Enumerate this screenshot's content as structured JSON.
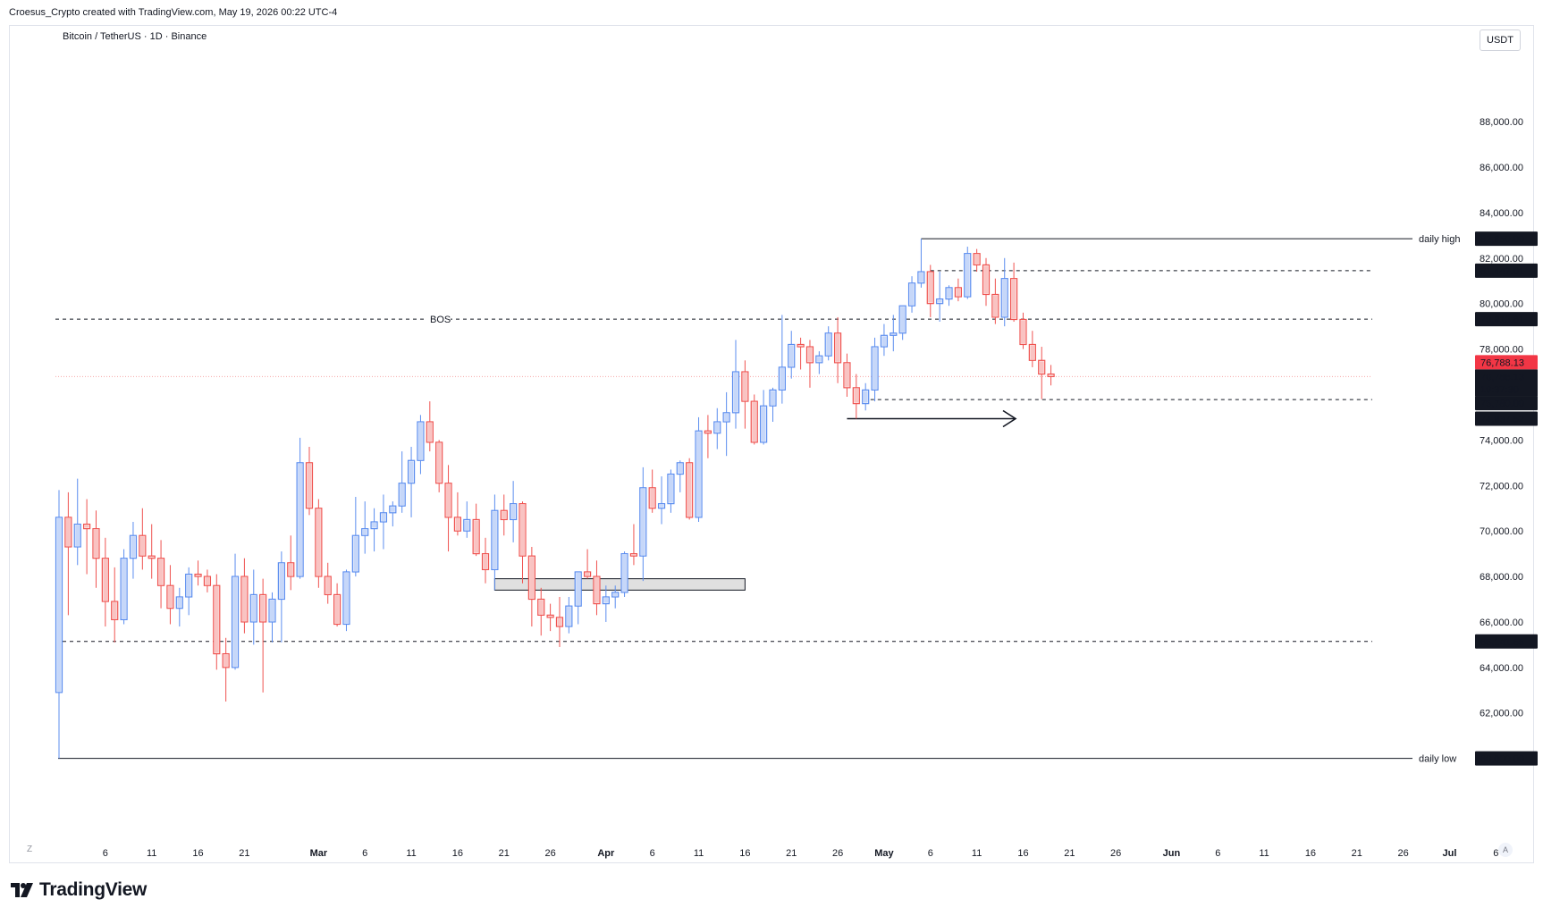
{
  "header": {
    "credit": "Croesus_Crypto created with TradingView.com, May 19, 2026 00:22 UTC-4"
  },
  "symbol": {
    "title": "Bitcoin / TetherUS · 1D · Binance"
  },
  "currency_button": "USDT",
  "footer": {
    "brand": "TradingView",
    "z_button": "Z",
    "auto_button": "A"
  },
  "colors": {
    "up": "#5b8def",
    "down": "#ef5350",
    "line": "#131722",
    "price_badge": "#f23645",
    "price_line": "#f7a8a8"
  },
  "chart_data": {
    "type": "candlestick",
    "title": "Bitcoin / TetherUS · 1D · Binance",
    "ylim": [
      58100,
      90400
    ],
    "y_ticks": [
      {
        "value": 62000,
        "label": "62,000.00"
      },
      {
        "value": 64000,
        "label": "64,000.00"
      },
      {
        "value": 66000,
        "label": "66,000.00"
      },
      {
        "value": 68000,
        "label": "68,000.00"
      },
      {
        "value": 70000,
        "label": "70,000.00"
      },
      {
        "value": 72000,
        "label": "72,000.00"
      },
      {
        "value": 74000,
        "label": "74,000.00"
      },
      {
        "value": 78000,
        "label": "78,000.00"
      },
      {
        "value": 80000,
        "label": "80,000.00"
      },
      {
        "value": 82000,
        "label": "82,000.00"
      },
      {
        "value": 84000,
        "label": "84,000.00"
      },
      {
        "value": 86000,
        "label": "86,000.00"
      },
      {
        "value": 88000,
        "label": "88,000.00"
      }
    ],
    "x_ticks": [
      {
        "label": "6",
        "day": 5
      },
      {
        "label": "11",
        "day": 10
      },
      {
        "label": "16",
        "day": 15
      },
      {
        "label": "21",
        "day": 20
      },
      {
        "label": "Mar",
        "day": 28,
        "bold": true
      },
      {
        "label": "6",
        "day": 33
      },
      {
        "label": "11",
        "day": 38
      },
      {
        "label": "16",
        "day": 43
      },
      {
        "label": "21",
        "day": 48
      },
      {
        "label": "26",
        "day": 53
      },
      {
        "label": "Apr",
        "day": 59,
        "bold": true
      },
      {
        "label": "6",
        "day": 64
      },
      {
        "label": "11",
        "day": 69
      },
      {
        "label": "16",
        "day": 74
      },
      {
        "label": "21",
        "day": 79
      },
      {
        "label": "26",
        "day": 84
      },
      {
        "label": "May",
        "day": 89,
        "bold": true
      },
      {
        "label": "6",
        "day": 94
      },
      {
        "label": "11",
        "day": 99
      },
      {
        "label": "16",
        "day": 104
      },
      {
        "label": "21",
        "day": 109
      },
      {
        "label": "26",
        "day": 114
      },
      {
        "label": "Jun",
        "day": 120,
        "bold": true
      },
      {
        "label": "6",
        "day": 125
      },
      {
        "label": "11",
        "day": 130
      },
      {
        "label": "16",
        "day": 135
      },
      {
        "label": "21",
        "day": 140
      },
      {
        "label": "26",
        "day": 145
      },
      {
        "label": "Jul",
        "day": 150,
        "bold": true
      },
      {
        "label": "6",
        "day": 155
      }
    ],
    "candles": [
      {
        "o": 62900,
        "h": 71800,
        "l": 60000,
        "c": 70600
      },
      {
        "o": 70600,
        "h": 71700,
        "l": 66300,
        "c": 69300
      },
      {
        "o": 69300,
        "h": 72300,
        "l": 68500,
        "c": 70300
      },
      {
        "o": 70300,
        "h": 71400,
        "l": 68100,
        "c": 70100
      },
      {
        "o": 70100,
        "h": 70900,
        "l": 67500,
        "c": 68800
      },
      {
        "o": 68800,
        "h": 69700,
        "l": 65800,
        "c": 66900
      },
      {
        "o": 66900,
        "h": 68400,
        "l": 65100,
        "c": 66100
      },
      {
        "o": 66100,
        "h": 69200,
        "l": 65900,
        "c": 68800
      },
      {
        "o": 68800,
        "h": 70400,
        "l": 67900,
        "c": 69800
      },
      {
        "o": 69800,
        "h": 71000,
        "l": 68300,
        "c": 68900
      },
      {
        "o": 68900,
        "h": 70300,
        "l": 67900,
        "c": 68800
      },
      {
        "o": 68800,
        "h": 69600,
        "l": 66600,
        "c": 67600
      },
      {
        "o": 67600,
        "h": 68500,
        "l": 65900,
        "c": 66600
      },
      {
        "o": 66600,
        "h": 67500,
        "l": 65800,
        "c": 67100
      },
      {
        "o": 67100,
        "h": 68400,
        "l": 66300,
        "c": 68100
      },
      {
        "o": 68100,
        "h": 68700,
        "l": 67600,
        "c": 68000
      },
      {
        "o": 68000,
        "h": 68300,
        "l": 67300,
        "c": 67600
      },
      {
        "o": 67600,
        "h": 68100,
        "l": 63900,
        "c": 64600
      },
      {
        "o": 64600,
        "h": 65300,
        "l": 62500,
        "c": 64000
      },
      {
        "o": 64000,
        "h": 69000,
        "l": 63900,
        "c": 68000
      },
      {
        "o": 68000,
        "h": 68800,
        "l": 65500,
        "c": 66000
      },
      {
        "o": 66000,
        "h": 68300,
        "l": 65000,
        "c": 67200
      },
      {
        "o": 67200,
        "h": 67900,
        "l": 62900,
        "c": 66000
      },
      {
        "o": 66000,
        "h": 67300,
        "l": 65100,
        "c": 67000
      },
      {
        "o": 67000,
        "h": 69100,
        "l": 65100,
        "c": 68600
      },
      {
        "o": 68600,
        "h": 69800,
        "l": 67400,
        "c": 68000
      },
      {
        "o": 68000,
        "h": 74100,
        "l": 67900,
        "c": 73000
      },
      {
        "o": 73000,
        "h": 73700,
        "l": 70700,
        "c": 71000
      },
      {
        "o": 71000,
        "h": 71400,
        "l": 67500,
        "c": 68000
      },
      {
        "o": 68000,
        "h": 68600,
        "l": 66800,
        "c": 67200
      },
      {
        "o": 67200,
        "h": 67700,
        "l": 65800,
        "c": 65900
      },
      {
        "o": 65900,
        "h": 68300,
        "l": 65600,
        "c": 68200
      },
      {
        "o": 68200,
        "h": 71500,
        "l": 68000,
        "c": 69800
      },
      {
        "o": 69800,
        "h": 71300,
        "l": 69000,
        "c": 70100
      },
      {
        "o": 70100,
        "h": 71000,
        "l": 69100,
        "c": 70400
      },
      {
        "o": 70400,
        "h": 71600,
        "l": 69200,
        "c": 70800
      },
      {
        "o": 70800,
        "h": 71300,
        "l": 70200,
        "c": 71100
      },
      {
        "o": 71100,
        "h": 73500,
        "l": 70800,
        "c": 72100
      },
      {
        "o": 72100,
        "h": 73700,
        "l": 70600,
        "c": 73100
      },
      {
        "o": 73100,
        "h": 75100,
        "l": 72500,
        "c": 74800
      },
      {
        "o": 74800,
        "h": 75700,
        "l": 73500,
        "c": 73900
      },
      {
        "o": 73900,
        "h": 74000,
        "l": 71700,
        "c": 72100
      },
      {
        "o": 72100,
        "h": 72900,
        "l": 69100,
        "c": 70600
      },
      {
        "o": 70600,
        "h": 71700,
        "l": 69800,
        "c": 70000
      },
      {
        "o": 70000,
        "h": 71300,
        "l": 69700,
        "c": 70500
      },
      {
        "o": 70500,
        "h": 71200,
        "l": 68900,
        "c": 69000
      },
      {
        "o": 69000,
        "h": 69700,
        "l": 67700,
        "c": 68300
      },
      {
        "o": 68300,
        "h": 71600,
        "l": 67400,
        "c": 70900
      },
      {
        "o": 70900,
        "h": 71600,
        "l": 69800,
        "c": 70500
      },
      {
        "o": 70500,
        "h": 72200,
        "l": 69500,
        "c": 71200
      },
      {
        "o": 71200,
        "h": 71300,
        "l": 67700,
        "c": 68900
      },
      {
        "o": 68900,
        "h": 69300,
        "l": 65800,
        "c": 67000
      },
      {
        "o": 67000,
        "h": 67500,
        "l": 65400,
        "c": 66300
      },
      {
        "o": 66300,
        "h": 66800,
        "l": 65600,
        "c": 66200
      },
      {
        "o": 66200,
        "h": 67100,
        "l": 64900,
        "c": 65800
      },
      {
        "o": 65800,
        "h": 67100,
        "l": 65500,
        "c": 66700
      },
      {
        "o": 66700,
        "h": 68200,
        "l": 65900,
        "c": 68200
      },
      {
        "o": 68200,
        "h": 69200,
        "l": 67900,
        "c": 68000
      },
      {
        "o": 68000,
        "h": 68700,
        "l": 66300,
        "c": 66800
      },
      {
        "o": 66800,
        "h": 67600,
        "l": 66000,
        "c": 67100
      },
      {
        "o": 67100,
        "h": 67600,
        "l": 66600,
        "c": 67300
      },
      {
        "o": 67300,
        "h": 69100,
        "l": 67100,
        "c": 69000
      },
      {
        "o": 69000,
        "h": 70300,
        "l": 68500,
        "c": 68900
      },
      {
        "o": 68900,
        "h": 72800,
        "l": 67800,
        "c": 71900
      },
      {
        "o": 71900,
        "h": 72700,
        "l": 70800,
        "c": 71000
      },
      {
        "o": 71000,
        "h": 72400,
        "l": 70300,
        "c": 71200
      },
      {
        "o": 71200,
        "h": 72700,
        "l": 70800,
        "c": 72500
      },
      {
        "o": 72500,
        "h": 73100,
        "l": 71700,
        "c": 73000
      },
      {
        "o": 73000,
        "h": 73200,
        "l": 70500,
        "c": 70600
      },
      {
        "o": 70600,
        "h": 75000,
        "l": 70400,
        "c": 74400
      },
      {
        "o": 74400,
        "h": 75100,
        "l": 73200,
        "c": 74300
      },
      {
        "o": 74300,
        "h": 75400,
        "l": 73600,
        "c": 74800
      },
      {
        "o": 74800,
        "h": 76100,
        "l": 73300,
        "c": 75200
      },
      {
        "o": 75200,
        "h": 78400,
        "l": 74500,
        "c": 77000
      },
      {
        "o": 77000,
        "h": 77500,
        "l": 74500,
        "c": 75700
      },
      {
        "o": 75700,
        "h": 76000,
        "l": 73800,
        "c": 73900
      },
      {
        "o": 73900,
        "h": 76200,
        "l": 73800,
        "c": 75500
      },
      {
        "o": 75500,
        "h": 76300,
        "l": 74800,
        "c": 76200
      },
      {
        "o": 76200,
        "h": 79500,
        "l": 75600,
        "c": 77200
      },
      {
        "o": 77200,
        "h": 78800,
        "l": 76700,
        "c": 78200
      },
      {
        "o": 78200,
        "h": 78500,
        "l": 77100,
        "c": 78100
      },
      {
        "o": 78100,
        "h": 78400,
        "l": 76300,
        "c": 77400
      },
      {
        "o": 77400,
        "h": 77900,
        "l": 76900,
        "c": 77700
      },
      {
        "o": 77700,
        "h": 79000,
        "l": 77500,
        "c": 78700
      },
      {
        "o": 78700,
        "h": 79400,
        "l": 76500,
        "c": 77400
      },
      {
        "o": 77400,
        "h": 77800,
        "l": 75900,
        "c": 76300
      },
      {
        "o": 76300,
        "h": 76900,
        "l": 74937.52,
        "c": 75600
      },
      {
        "o": 75600,
        "h": 76500,
        "l": 75300,
        "c": 76200
      },
      {
        "o": 76200,
        "h": 78500,
        "l": 75700,
        "c": 78100
      },
      {
        "o": 78100,
        "h": 79100,
        "l": 77700,
        "c": 78600
      },
      {
        "o": 78600,
        "h": 79500,
        "l": 77900,
        "c": 78700
      },
      {
        "o": 78700,
        "h": 79900,
        "l": 78400,
        "c": 79900
      },
      {
        "o": 79900,
        "h": 81200,
        "l": 79600,
        "c": 80900
      },
      {
        "o": 80900,
        "h": 82850,
        "l": 80700,
        "c": 81400
      },
      {
        "o": 81400,
        "h": 81700,
        "l": 79400,
        "c": 80000
      },
      {
        "o": 80000,
        "h": 81400,
        "l": 79200,
        "c": 80200
      },
      {
        "o": 80200,
        "h": 80800,
        "l": 79900,
        "c": 80700
      },
      {
        "o": 80700,
        "h": 81100,
        "l": 80100,
        "c": 80300
      },
      {
        "o": 80300,
        "h": 82500,
        "l": 80200,
        "c": 82200
      },
      {
        "o": 82200,
        "h": 82400,
        "l": 81400,
        "c": 81700
      },
      {
        "o": 81700,
        "h": 82000,
        "l": 79900,
        "c": 80400
      },
      {
        "o": 80400,
        "h": 81100,
        "l": 79100,
        "c": 79400
      },
      {
        "o": 79400,
        "h": 82000,
        "l": 79000,
        "c": 81100
      },
      {
        "o": 81100,
        "h": 81800,
        "l": 79200,
        "c": 79300
      },
      {
        "o": 79300,
        "h": 79600,
        "l": 78000,
        "c": 78200
      },
      {
        "o": 78200,
        "h": 78800,
        "l": 77200,
        "c": 77500
      },
      {
        "o": 77500,
        "h": 78100,
        "l": 75800,
        "c": 76900
      },
      {
        "o": 76900,
        "h": 77300,
        "l": 76400,
        "c": 76788.13
      }
    ],
    "level_labels": [
      {
        "key": "daily_high",
        "value": 82850,
        "label": "82,850.00",
        "tag": "daily high"
      },
      {
        "key": "l81447",
        "value": 81447.01,
        "label": "81,447.01"
      },
      {
        "key": "l79313",
        "value": 79313.61,
        "label": "79,313.61"
      },
      {
        "key": "l75780",
        "value": 75780,
        "label": "75,780.00"
      },
      {
        "key": "l74937",
        "value": 74937.52,
        "label": "74,937.52"
      },
      {
        "key": "l65141",
        "value": 65141.55,
        "label": "65,141.55"
      },
      {
        "key": "daily_low",
        "value": 60000,
        "label": "60,000.00",
        "tag": "daily low"
      }
    ],
    "bos_label": "BOS",
    "last_price": {
      "value": 76788.13,
      "label": "76,788.13",
      "countdown": "19:37:30"
    },
    "zone": {
      "from_day": 47,
      "to_day": 74,
      "low": 67400,
      "high": 67900
    }
  }
}
